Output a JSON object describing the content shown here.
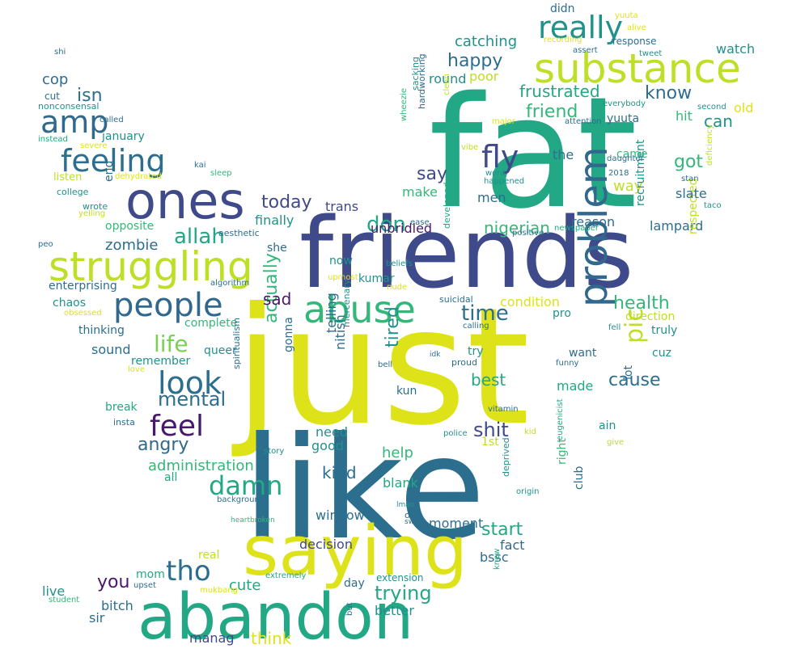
{
  "palette": {
    "teal_dark": "#2c6e8e",
    "indigo": "#3f4a8a",
    "purple_dark": "#48186a",
    "green": "#22a884",
    "green_mid": "#35b779",
    "lime": "#bddf26",
    "yellow": "#dde318",
    "teal": "#21918c",
    "blue": "#31688e",
    "light_green": "#7ad151"
  },
  "words": [
    "just",
    "like",
    "fat",
    "friends",
    "saying",
    "abandon",
    "substance",
    "ones",
    "struggling",
    "abuse",
    "problem",
    "feeling",
    "people",
    "amp",
    "fly",
    "really",
    "look",
    "feel",
    "damn",
    "tho",
    "allah",
    "life",
    "mental",
    "pic",
    "health",
    "today",
    "don",
    "shit",
    "angry",
    "time",
    "say",
    "know",
    "cause",
    "happy",
    "catching",
    "frustrated",
    "friend",
    "isn",
    "cop",
    "nigerian",
    "trying",
    "start",
    "administration",
    "kind",
    "actually",
    "zombie",
    "sad",
    "you",
    "best",
    "tired",
    "help",
    "made",
    "got",
    "can",
    "way",
    "make",
    "unbridled",
    "finally",
    "trans",
    "reason",
    "lampard",
    "recruitment",
    "respected",
    "condition",
    "slate",
    "came",
    "the",
    "hit",
    "old",
    "watch",
    "didn",
    "response",
    "round",
    "poor",
    "men",
    "kumar",
    "blank",
    "window",
    "decision",
    "moment",
    "fact",
    "bssc",
    "think",
    "cute",
    "mom",
    "live",
    "sir",
    "bitch",
    "manag",
    "better",
    "day",
    "extension",
    "real",
    "need",
    "good",
    "telling",
    "nitish",
    "gonna",
    "sound",
    "remember",
    "queer",
    "break",
    "thinking",
    "chaos",
    "enterprising",
    "opposite",
    "listen",
    "college",
    "wrote",
    "january",
    "cut",
    "called",
    "yuuta",
    "direction",
    "truly",
    "cuz",
    "lot",
    "want",
    "pro",
    "try",
    "kun",
    "1st",
    "right",
    "club",
    "ain",
    "all",
    "end",
    "she",
    "now",
    "complete",
    "algorithm",
    "aesthetic",
    "beliefs",
    "developed",
    "eugenicist",
    "deprived",
    "odd",
    "suicidal",
    "proud",
    "idk",
    "lmao",
    "swt",
    "mercenary",
    "spiritualism",
    "insta",
    "story",
    "heartbroken",
    "background",
    "mukbang",
    "upset",
    "student",
    "extremely",
    "but",
    "knew",
    "origin",
    "give",
    "police",
    "kid",
    "vitamin",
    "funny",
    "bell",
    "fell",
    "calling",
    "nude",
    "upmost",
    "positive",
    "newspaper",
    "ease",
    "happened",
    "word",
    "2018",
    "daughter",
    "stan",
    "taco",
    "deficiency",
    "second",
    "everybody",
    "attention",
    "major",
    "vibe",
    "clean",
    "hardworking",
    "sacking",
    "wheezie",
    "assert",
    "alive",
    "recording",
    "tweet",
    "shi",
    "nonconsensal",
    "instead",
    "severe",
    "dehydrated",
    "kai",
    "sleep",
    "yelling",
    "peo",
    "obsessed",
    "love",
    "yuuta"
  ]
}
